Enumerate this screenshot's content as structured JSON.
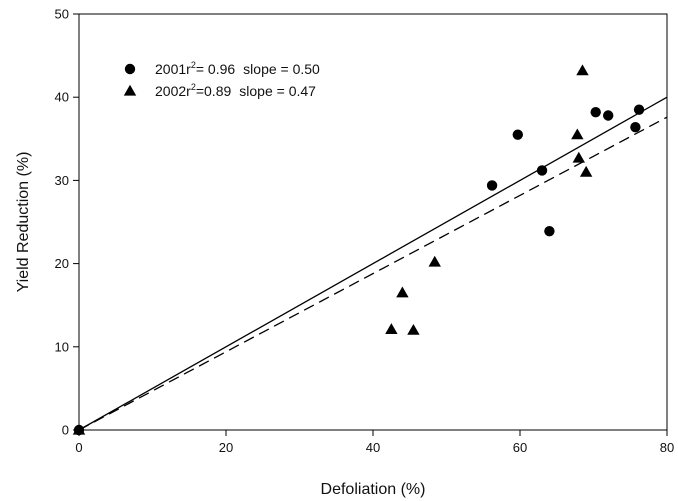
{
  "chart_data": {
    "type": "scatter",
    "title": "",
    "xlabel": "Defoliation (%)",
    "ylabel": "Yield Reduction (%)",
    "xlim": [
      0,
      80
    ],
    "ylim": [
      0,
      50
    ],
    "x_ticks": [
      "0",
      "20",
      "40",
      "60",
      "80"
    ],
    "y_ticks": [
      "0",
      "10",
      "20",
      "30",
      "40",
      "50"
    ],
    "grid": false,
    "legend_position": "top-left",
    "series": [
      {
        "name": "2001",
        "legend": {
          "year": "2001",
          "r2_prefix": "r",
          "r2_sup": "2",
          "r2_value": "= 0.96",
          "slope_text": "slope = 0.50"
        },
        "marker": "circle",
        "line_style": "solid",
        "slope": 0.5,
        "color": "#000000",
        "points": [
          {
            "x": 0,
            "y": 0
          },
          {
            "x": 56.2,
            "y": 29.4
          },
          {
            "x": 59.7,
            "y": 35.5
          },
          {
            "x": 63.0,
            "y": 31.2
          },
          {
            "x": 64.0,
            "y": 23.9
          },
          {
            "x": 70.3,
            "y": 38.2
          },
          {
            "x": 72.0,
            "y": 37.8
          },
          {
            "x": 75.7,
            "y": 36.4
          },
          {
            "x": 76.2,
            "y": 38.5
          }
        ]
      },
      {
        "name": "2002",
        "legend": {
          "year": "2002",
          "r2_prefix": "r",
          "r2_sup": "2",
          "r2_value": "=0.89",
          "slope_text": "slope = 0.47"
        },
        "marker": "triangle",
        "line_style": "dashed",
        "slope": 0.47,
        "color": "#000000",
        "points": [
          {
            "x": 0,
            "y": 0
          },
          {
            "x": 42.5,
            "y": 12.1
          },
          {
            "x": 44.0,
            "y": 16.5
          },
          {
            "x": 45.5,
            "y": 12.0
          },
          {
            "x": 48.4,
            "y": 20.2
          },
          {
            "x": 67.8,
            "y": 35.5
          },
          {
            "x": 68.0,
            "y": 32.7
          },
          {
            "x": 68.5,
            "y": 43.2
          },
          {
            "x": 69.0,
            "y": 31.0
          }
        ]
      }
    ]
  }
}
